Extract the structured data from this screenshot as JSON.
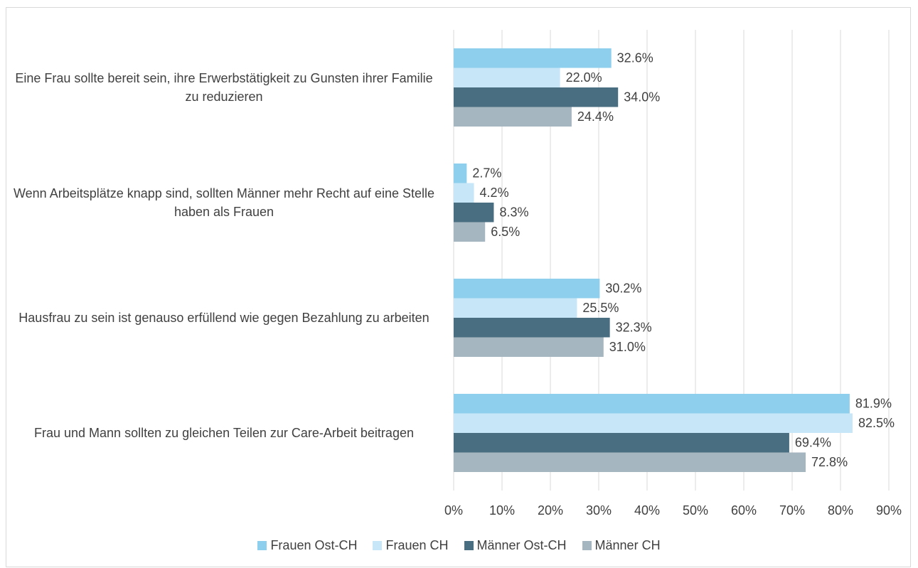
{
  "chart_data": {
    "type": "bar",
    "orientation": "horizontal",
    "categories": [
      "Eine Frau sollte bereit sein, ihre Erwerbstätigkeit zu Gunsten ihrer Familie zu reduzieren",
      "Wenn Arbeitsplätze knapp sind, sollten Männer mehr Recht auf eine Stelle haben als Frauen",
      "Hausfrau zu sein ist genauso erfüllend wie gegen Bezahlung zu arbeiten",
      "Frau und Mann sollten zu gleichen Teilen zur Care-Arbeit beitragen"
    ],
    "series": [
      {
        "name": "Frauen Ost-CH",
        "color": "#8ecfee",
        "values": [
          32.6,
          2.7,
          30.2,
          81.9
        ],
        "value_labels": [
          "32.6%",
          "2.7%",
          "30.2%",
          "81.9%"
        ]
      },
      {
        "name": "Frauen CH",
        "color": "#c7e7f8",
        "values": [
          22.0,
          4.2,
          25.5,
          82.5
        ],
        "value_labels": [
          "22.0%",
          "4.2%",
          "25.5%",
          "82.5%"
        ]
      },
      {
        "name": "Männer Ost-CH",
        "color": "#4a6e81",
        "values": [
          34.0,
          8.3,
          32.3,
          69.4
        ],
        "value_labels": [
          "34.0%",
          "8.3%",
          "32.3%",
          "69.4%"
        ]
      },
      {
        "name": "Männer CH",
        "color": "#a6b6c0",
        "values": [
          24.4,
          6.5,
          31.0,
          72.8
        ],
        "value_labels": [
          "24.4%",
          "6.5%",
          "31.0%",
          "72.8%"
        ]
      }
    ],
    "xlim": [
      0,
      90
    ],
    "xticks": [
      {
        "value": 0,
        "label": "0%"
      },
      {
        "value": 10,
        "label": "10%"
      },
      {
        "value": 20,
        "label": "20%"
      },
      {
        "value": 30,
        "label": "30%"
      },
      {
        "value": 40,
        "label": "40%"
      },
      {
        "value": 50,
        "label": "50%"
      },
      {
        "value": 60,
        "label": "60%"
      },
      {
        "value": 70,
        "label": "70%"
      },
      {
        "value": 80,
        "label": "80%"
      },
      {
        "value": 90,
        "label": "90%"
      }
    ],
    "grid": true,
    "legend": "bottom"
  }
}
